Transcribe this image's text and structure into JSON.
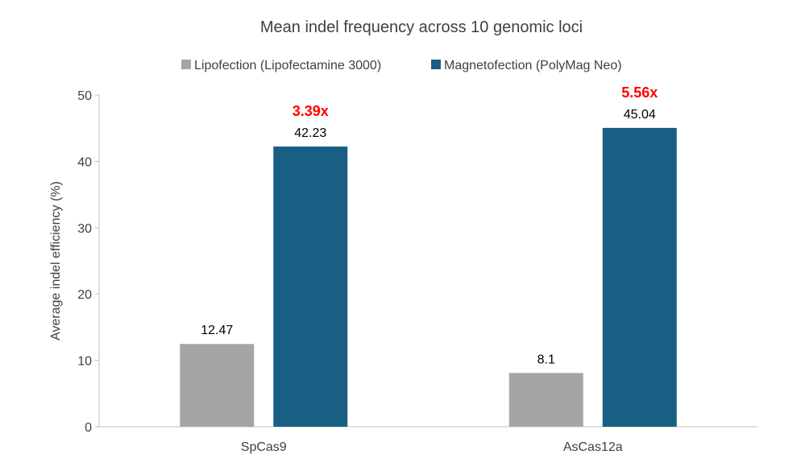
{
  "chart_data": {
    "type": "bar",
    "title": "Mean indel frequency across 10 genomic loci",
    "xlabel": "",
    "ylabel": "Average indel efficiency (%)",
    "ylim": [
      0,
      50
    ],
    "yticks": [
      0,
      10,
      20,
      30,
      40,
      50
    ],
    "grid": false,
    "legend_position": "top",
    "categories": [
      "SpCas9",
      "AsCas12a"
    ],
    "series": [
      {
        "name": "Lipofection (Lipofectamine 3000)",
        "color": "#A5A5A5",
        "values": [
          12.47,
          8.1
        ],
        "labels": [
          "12.47",
          "8.1"
        ]
      },
      {
        "name": "Magnetofection (PolyMag Neo)",
        "color": "#195E83",
        "values": [
          42.23,
          45.04
        ],
        "labels": [
          "42.23",
          "45.04"
        ]
      }
    ],
    "annotations": [
      {
        "category": "SpCas9",
        "series": 1,
        "text": "3.39x",
        "color": "#FF0000"
      },
      {
        "category": "AsCas12a",
        "series": 1,
        "text": "5.56x",
        "color": "#FF0000"
      }
    ]
  }
}
